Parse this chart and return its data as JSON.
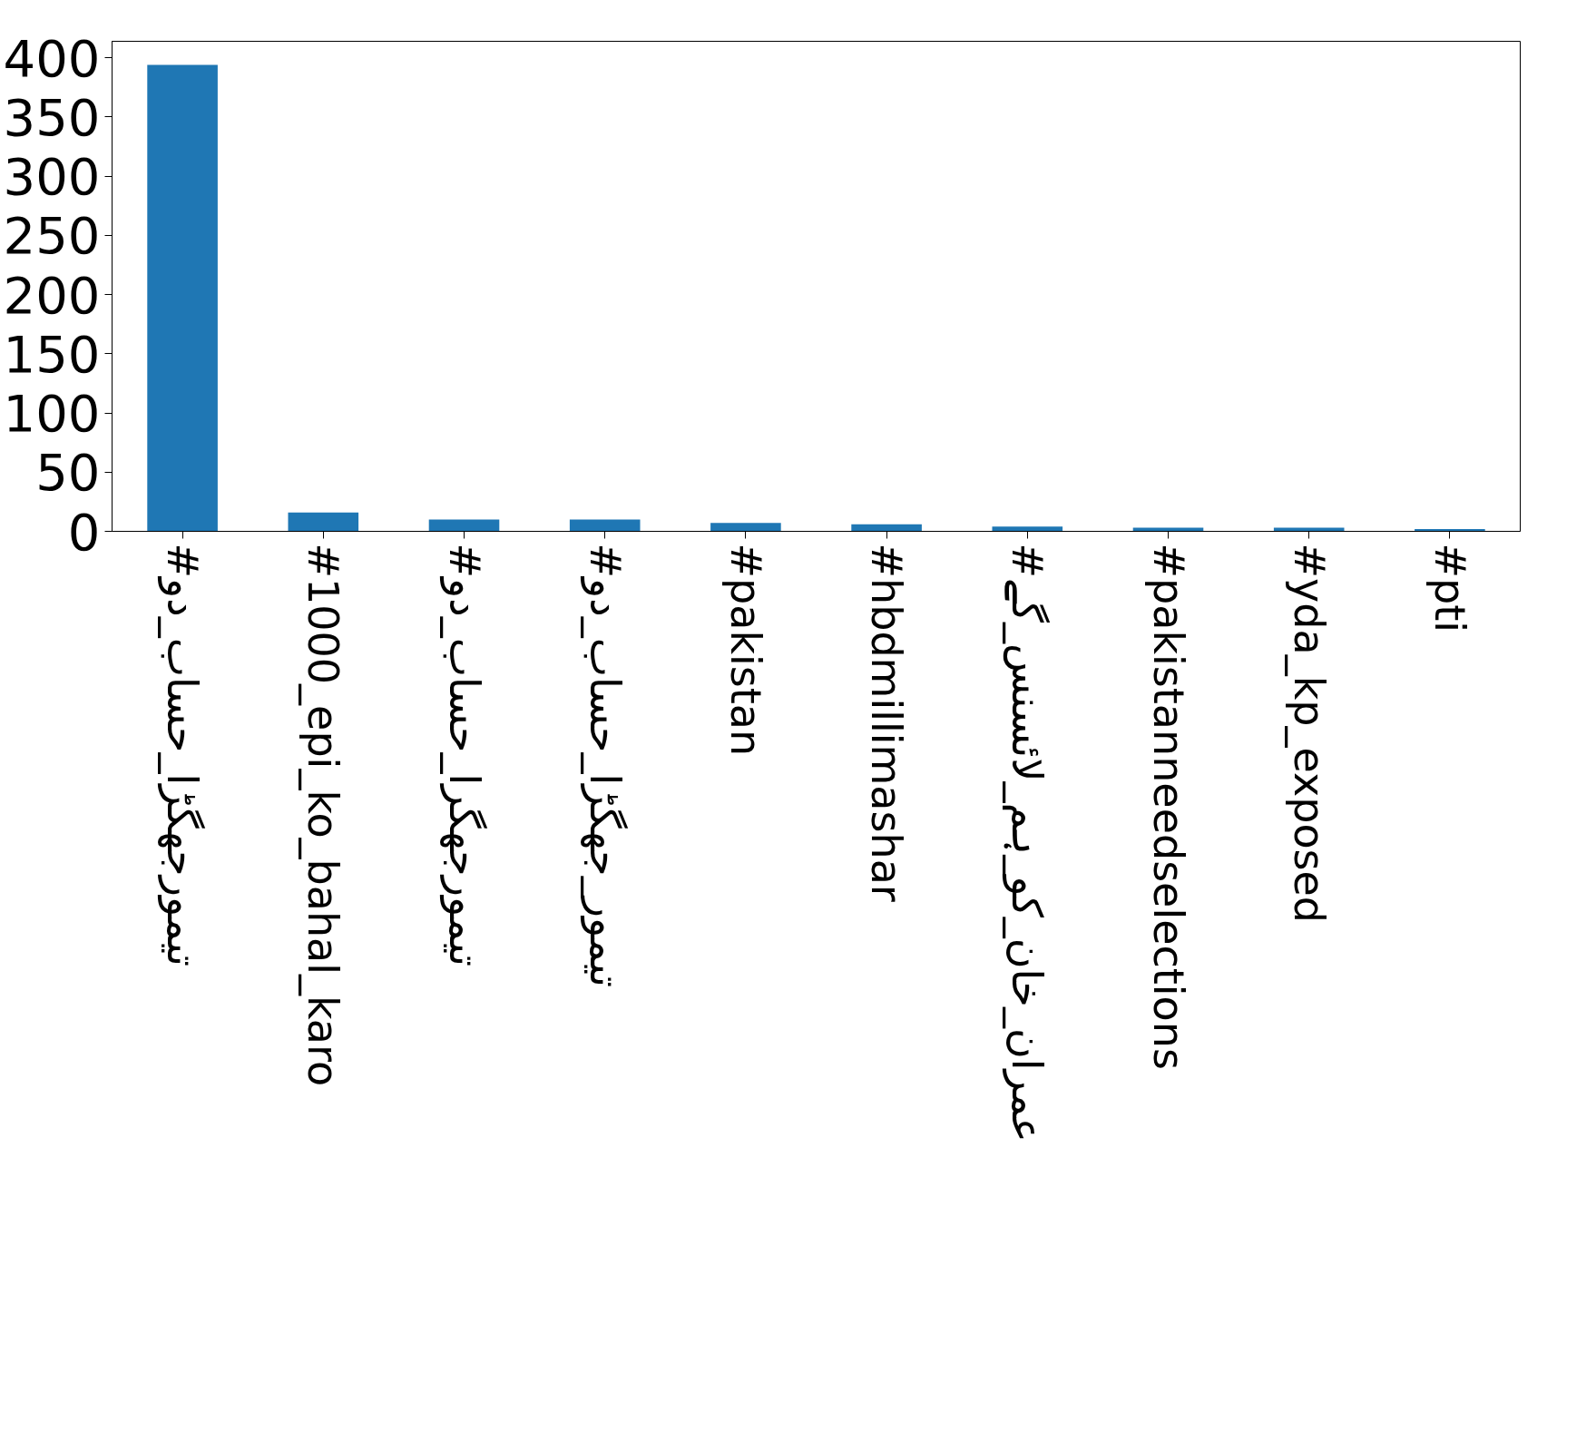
{
  "chart_data": {
    "type": "bar",
    "categories": [
      "#تیمورجھگڑا_حساب_دو",
      "#1000_epi_ko_bahal_karo",
      "#تیمورجھگرا_حساب_دو",
      "#تیمور_جھگڑا_حساب_دو",
      "#pakistan",
      "#hbdmillimashar",
      "#عمران_خان_کو_ہم_لائسنس_گے",
      "#pakistanneedselections",
      "#yda_kp_exposed",
      "#pti"
    ],
    "values": [
      394,
      16,
      10,
      10,
      7,
      6,
      4,
      3,
      3,
      2
    ],
    "color": "#1f77b4",
    "ylim": [
      0,
      414
    ],
    "yticks": [
      0,
      50,
      100,
      150,
      200,
      250,
      300,
      350,
      400
    ],
    "grid": false
  }
}
